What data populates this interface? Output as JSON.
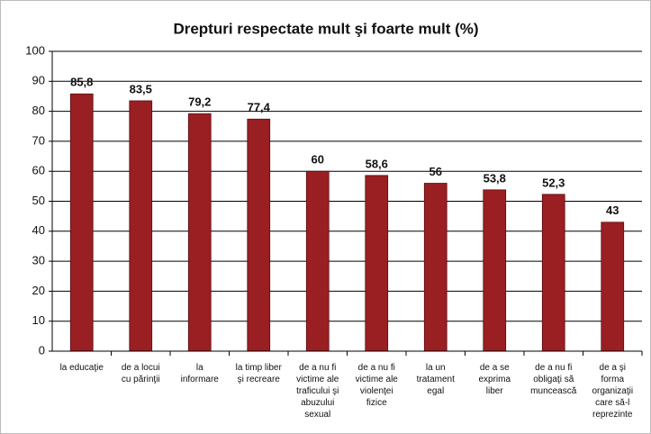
{
  "chart_data": {
    "type": "bar",
    "title": "Drepturi respectate mult şi foarte mult (%)",
    "categories": [
      "la educaţie",
      "de a locui\ncu părinţii",
      "la\ninformare",
      "la timp liber\nşi recreare",
      "de a nu fi\nvictime ale\ntraficului şi\nabuzului\nsexual",
      "de a nu fi\nvictime ale\nviolenţei\nfizice",
      "la un\ntratament\negal",
      "de a se\nexprima\nliber",
      "de a nu fi\nobligaţi să\nmuncească",
      "de a şi\nforma\norganizaţii\ncare să-l\nreprezinte"
    ],
    "values": [
      85.8,
      83.5,
      79.2,
      77.4,
      60,
      58.6,
      56,
      53.8,
      52.3,
      43
    ],
    "value_labels": [
      "85,8",
      "83,5",
      "79,2",
      "77,4",
      "60",
      "58,6",
      "56",
      "53,8",
      "52,3",
      "43"
    ],
    "color": "#9a1f22",
    "ylim": [
      0,
      100
    ],
    "yticks": [
      0,
      10,
      20,
      30,
      40,
      50,
      60,
      70,
      80,
      90,
      100
    ],
    "grid": true
  }
}
